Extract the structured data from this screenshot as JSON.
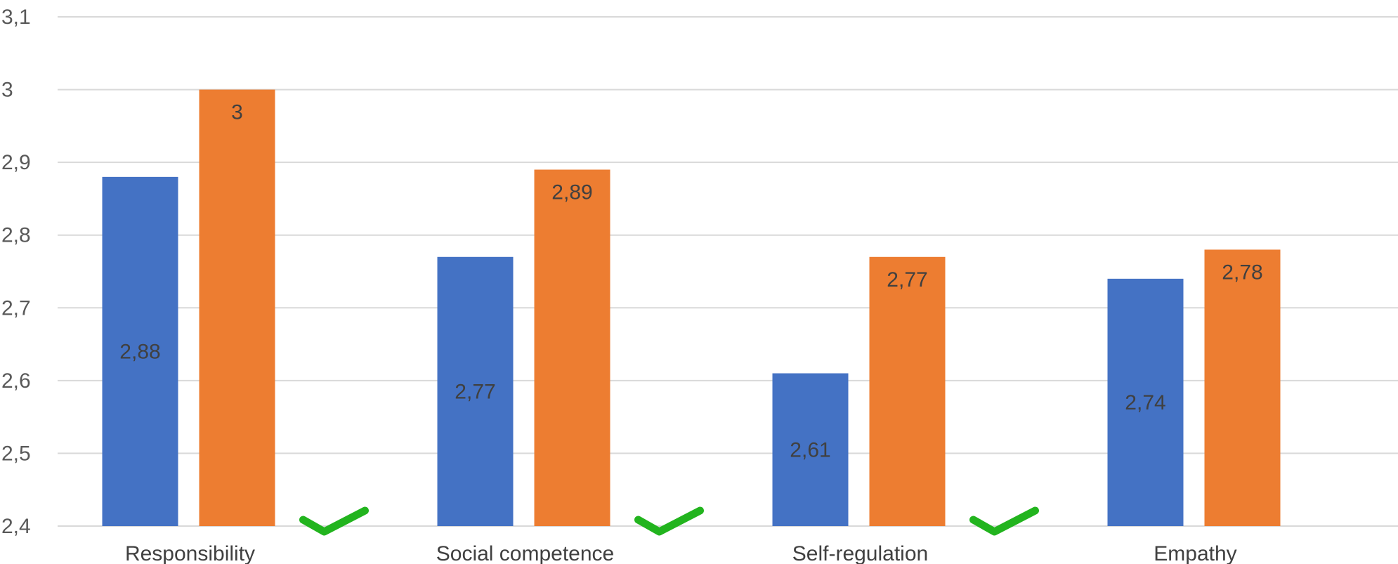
{
  "chart_data": {
    "type": "bar",
    "categories": [
      "Responsibility",
      "Social competence",
      "Self-regulation",
      "Empathy"
    ],
    "series": [
      {
        "values": [
          2.88,
          2.77,
          2.61,
          2.74
        ],
        "labels": [
          "2,88",
          "2,77",
          "2,61",
          "2,74"
        ],
        "color": "#4472c4"
      },
      {
        "values": [
          3.0,
          2.89,
          2.77,
          2.78
        ],
        "labels": [
          "3",
          "2,89",
          "2,77",
          "2,78"
        ],
        "color": "#ed7d31"
      }
    ],
    "ylim": [
      2.4,
      3.1
    ],
    "yticks": [
      2.4,
      2.5,
      2.6,
      2.7,
      2.8,
      2.9,
      3.0,
      3.1
    ],
    "ytick_labels": [
      "2,4",
      "2,5",
      "2,6",
      "2,7",
      "2,8",
      "2,9",
      "3",
      "3,1"
    ],
    "grid": true,
    "checkmarks": [
      true,
      true,
      true,
      false
    ],
    "checkmark_color": "#22b41e"
  }
}
